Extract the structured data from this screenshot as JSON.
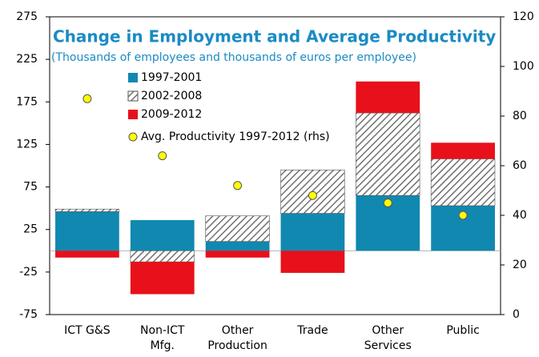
{
  "chart_data": {
    "type": "bar",
    "title": "Change in Employment and Average Productivity",
    "subtitle": "(Thousands of employees and thousands of euros per employee)",
    "categories": [
      "ICT G&S",
      "Non-ICT Mfg.",
      "Other Production",
      "Trade",
      "Other Services",
      "Public"
    ],
    "series": [
      {
        "name": "1997-2001",
        "color": "#1188b0",
        "values": [
          46,
          36,
          11,
          44,
          65,
          53
        ]
      },
      {
        "name": "2002-2008",
        "color": "#808080",
        "pattern": "hatch",
        "values": [
          3,
          -13,
          30,
          51,
          97,
          55
        ]
      },
      {
        "name": "2009-2012",
        "color": "#e8101a",
        "values": [
          -8,
          -38,
          -8,
          -26,
          37,
          19
        ]
      },
      {
        "name": "Avg. Productivity 1997-2012 (rhs)",
        "color": "#ffff00",
        "kind": "scatter",
        "axis": "y2",
        "values": [
          87,
          64,
          52,
          48,
          45,
          40
        ]
      }
    ],
    "ylim": [
      -75,
      275
    ],
    "yticks": [
      -75,
      -25,
      25,
      75,
      125,
      175,
      225,
      275
    ],
    "y2lim": [
      0,
      120
    ],
    "y2ticks": [
      0,
      20,
      40,
      60,
      80,
      100,
      120
    ],
    "grid": false
  }
}
